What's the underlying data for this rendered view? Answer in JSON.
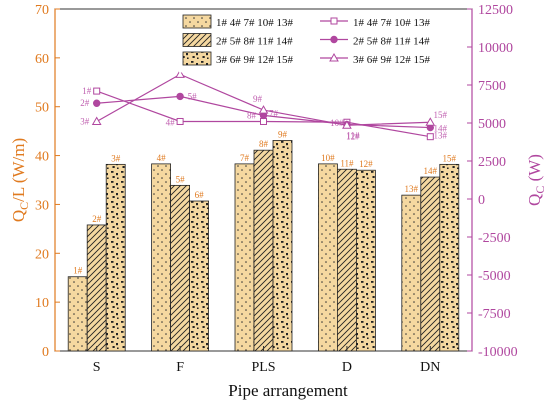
{
  "chart_data": {
    "type": "bar",
    "xlabel": "Pipe arrangement",
    "ylabel_left_main": "Q",
    "ylabel_left_sub": "C",
    "ylabel_left_rest": "/L (W/m)",
    "ylabel_right_main": "Q",
    "ylabel_right_sub": "C",
    "ylabel_right_rest": " (W)",
    "categories": [
      "S",
      "F",
      "PLS",
      "D",
      "DN"
    ],
    "ylim_left": [
      0,
      70
    ],
    "yticks_left": [
      "0",
      "10",
      "20",
      "30",
      "40",
      "50",
      "60",
      "70"
    ],
    "ylim_right": [
      -10000,
      12500
    ],
    "yticks_right": [
      "-10000",
      "-7500",
      "-5000",
      "-2500",
      "0",
      "2500",
      "5000",
      "7500",
      "10000",
      "12500"
    ],
    "bar_series": [
      {
        "name": "1# 4# 7# 10# 13#",
        "values": [
          15.2,
          38.3,
          38.3,
          38.3,
          31.9
        ],
        "labels": [
          "1#",
          "4#",
          "7#",
          "10#",
          "13#"
        ]
      },
      {
        "name": "2# 5# 8# 11# 14#",
        "values": [
          25.8,
          33.9,
          41.1,
          37.2,
          35.6
        ],
        "labels": [
          "2#",
          "5#",
          "8#",
          "11#",
          "14#"
        ]
      },
      {
        "name": "3# 6# 9# 12# 15#",
        "values": [
          38.2,
          30.7,
          43.1,
          37.0,
          38.2
        ],
        "labels": [
          "3#",
          "6#",
          "9#",
          "12#",
          "15#"
        ]
      }
    ],
    "line_series": [
      {
        "name": "1# 4# 7# 10# 13#",
        "marker": "square-open",
        "values": [
          7100,
          5100,
          5100,
          5050,
          4100
        ],
        "labels": [
          "1#",
          "4#",
          "7#",
          "10#",
          "13#"
        ]
      },
      {
        "name": "2# 5# 8# 11# 14#",
        "marker": "circle-filled",
        "values": [
          6300,
          6750,
          5500,
          4900,
          4700
        ],
        "labels": [
          "2#",
          "5#",
          "8#",
          "11#",
          "14#"
        ]
      },
      {
        "name": "3# 6# 9# 12# 15#",
        "marker": "triangle-open",
        "values": [
          5100,
          8200,
          5850,
          4850,
          5050
        ],
        "labels": [
          "3#",
          "6#",
          "9#",
          "12#",
          "15#"
        ]
      }
    ],
    "legend_position": "top-right",
    "colors": {
      "bar_fill": "#f5d8a0",
      "line": "#b0479f",
      "left_axis": "#e07a1f",
      "right_axis": "#b0479f"
    }
  }
}
